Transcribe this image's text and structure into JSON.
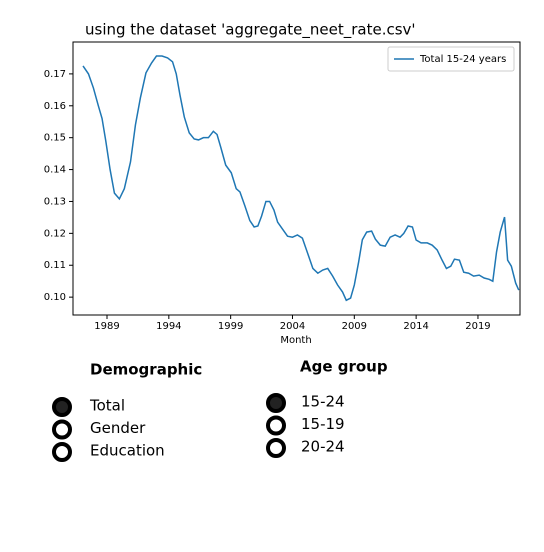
{
  "chart_data": {
    "type": "line",
    "title": "using the dataset 'aggregate_neet_rate.csv'",
    "xlabel": "Month",
    "legend": "upper right",
    "x": [
      1987.06,
      1987.5,
      1987.9,
      1988.3,
      1988.6,
      1988.9,
      1989.25,
      1989.6,
      1990.0,
      1990.4,
      1990.9,
      1991.3,
      1991.7,
      1992.15,
      1992.6,
      1993.0,
      1993.45,
      1993.9,
      1994.3,
      1994.6,
      1994.9,
      1995.25,
      1995.65,
      1996.05,
      1996.4,
      1996.8,
      1997.2,
      1997.6,
      1997.9,
      1998.2,
      1998.6,
      1999.05,
      1999.45,
      1999.75,
      2000.15,
      2000.55,
      2000.9,
      2001.2,
      2001.5,
      2001.85,
      2002.15,
      2002.5,
      2002.8,
      2003.2,
      2003.6,
      2004.0,
      2004.4,
      2004.8,
      2005.25,
      2005.65,
      2006.05,
      2006.45,
      2006.85,
      2007.25,
      2007.65,
      2008.05,
      2008.35,
      2008.7,
      2009.0,
      2009.35,
      2009.65,
      2010.0,
      2010.4,
      2010.7,
      2011.1,
      2011.5,
      2011.9,
      2012.3,
      2012.7,
      2013.0,
      2013.35,
      2013.7,
      2014.0,
      2014.4,
      2014.9,
      2015.3,
      2015.7,
      2016.1,
      2016.45,
      2016.8,
      2017.1,
      2017.5,
      2017.85,
      2018.25,
      2018.65,
      2019.1,
      2019.5,
      2019.9,
      2020.2,
      2020.5,
      2020.8,
      2021.15,
      2021.4,
      2021.7,
      2022.05,
      2022.3
    ],
    "series": [
      {
        "name": "Total 15-24 years",
        "color": "#1f77b4",
        "values": [
          0.1725,
          0.17,
          0.1656,
          0.16,
          0.156,
          0.149,
          0.14,
          0.1326,
          0.1308,
          0.134,
          0.1424,
          0.154,
          0.1625,
          0.1703,
          0.1734,
          0.1756,
          0.1756,
          0.175,
          0.1738,
          0.17,
          0.1634,
          0.1565,
          0.1515,
          0.1496,
          0.1493,
          0.15,
          0.15,
          0.152,
          0.151,
          0.147,
          0.1414,
          0.139,
          0.134,
          0.133,
          0.1286,
          0.124,
          0.122,
          0.1223,
          0.1254,
          0.13,
          0.13,
          0.1273,
          0.1235,
          0.1213,
          0.1191,
          0.1188,
          0.1195,
          0.1185,
          0.1135,
          0.109,
          0.1075,
          0.1085,
          0.109,
          0.1066,
          0.1038,
          0.1016,
          0.099,
          0.0997,
          0.1038,
          0.111,
          0.118,
          0.1204,
          0.1207,
          0.1182,
          0.1163,
          0.116,
          0.1188,
          0.1195,
          0.1188,
          0.12,
          0.1223,
          0.122,
          0.1179,
          0.117,
          0.117,
          0.1163,
          0.1148,
          0.1116,
          0.109,
          0.1097,
          0.1119,
          0.1116,
          0.1078,
          0.1075,
          0.1066,
          0.1069,
          0.106,
          0.1056,
          0.105,
          0.1141,
          0.1204,
          0.1251,
          0.1116,
          0.1097,
          0.1044,
          0.1022
        ]
      }
    ],
    "xlim": [
      1986.25,
      2022.4
    ],
    "xticks": [
      1989,
      1994,
      1999,
      2004,
      2009,
      2014,
      2019
    ],
    "ylim": [
      0.0944,
      0.18
    ],
    "yticks": [
      {
        "value": 0.1,
        "label": "0.10"
      },
      0.11,
      0.12,
      0.13,
      0.14,
      0.15,
      0.16,
      0.17
    ]
  },
  "controls": [
    {
      "title": "Demographic",
      "options": [
        "Total",
        "Gender",
        "Education"
      ],
      "selected": 0
    },
    {
      "title": "Age group",
      "options": [
        "15-24",
        "15-19",
        "20-24"
      ],
      "selected": 0
    }
  ]
}
